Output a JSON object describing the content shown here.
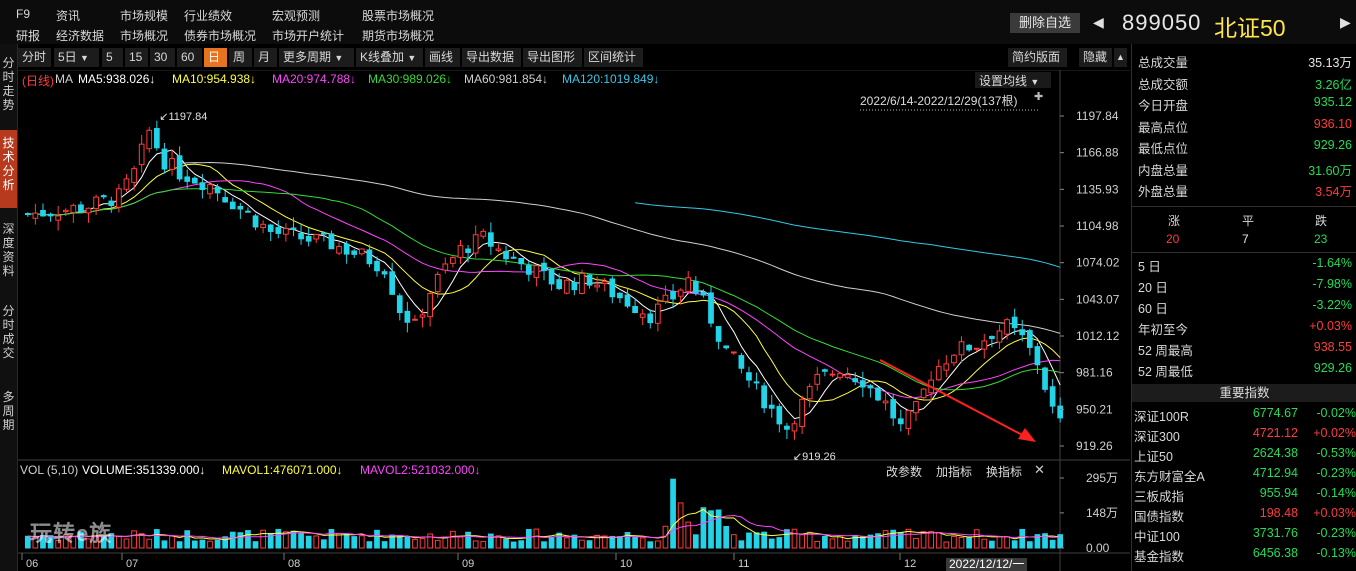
{
  "menu": {
    "row1": [
      "F9",
      "资讯",
      "市场规模",
      "行业绩效",
      "宏观预测",
      "股票市场概况"
    ],
    "row2": [
      "研报",
      "经济数据",
      "市场概况",
      "债券市场概况",
      "市场开户统计",
      "期货市场概况"
    ]
  },
  "header": {
    "remove_watch": "删除自选",
    "code": "899050",
    "name": "北证50"
  },
  "side_tabs": [
    "分\n时\n走\n势",
    "技\n术\n分\n析",
    "深\n度\n资\n料",
    "分\n时\n成\n交",
    "多\n周\n期"
  ],
  "toolbar": {
    "items": [
      "分时",
      "5日",
      "5",
      "15",
      "30",
      "60",
      "日",
      "周",
      "月",
      "更多周期",
      "K线叠加",
      "画线",
      "导出数据",
      "导出图形",
      "区间统计"
    ],
    "active": "日",
    "right": [
      "简约版面",
      "隐藏"
    ]
  },
  "ma_legend": {
    "period_tag": "(日线)",
    "ma": "MA",
    "items": [
      {
        "text": "MA5:938.026↓",
        "color": "#ffffff"
      },
      {
        "text": "MA10:954.938↓",
        "color": "#ffff3c"
      },
      {
        "text": "MA20:974.788↓",
        "color": "#ff44ff"
      },
      {
        "text": "MA30:989.026↓",
        "color": "#33dd33"
      },
      {
        "text": "MA60:981.854↓",
        "color": "#cfcfcf"
      },
      {
        "text": "MA120:1019.849↓",
        "color": "#33c8e8"
      }
    ],
    "settings": "设置均线",
    "range": "2022/6/14-2022/12/29(137根)"
  },
  "price_axis": [
    "1197.84",
    "1166.88",
    "1135.93",
    "1104.98",
    "1074.02",
    "1043.07",
    "1012.12",
    "981.16",
    "950.21",
    "919.26"
  ],
  "annotations": {
    "high": "1197.84",
    "low": "919.26"
  },
  "volume": {
    "legend_name": "VOL (5,10)",
    "volume": "VOLUME:351339.000↓",
    "mavol1": "MAVOL1:476071.000↓",
    "mavol2": "MAVOL2:521032.000↓",
    "buttons": [
      "改参数",
      "加指标",
      "换指标"
    ],
    "axis": [
      "295万",
      "148万",
      "0.00"
    ]
  },
  "x_axis": [
    "06",
    "07",
    "08",
    "09",
    "10",
    "11",
    "12"
  ],
  "cursor_date": "2022/12/12/一",
  "watermark": "玩转e族",
  "quote": [
    {
      "k": "总成交量",
      "v": "35.13万",
      "c": "white"
    },
    {
      "k": "总成交额",
      "v": "3.26亿",
      "c": "green"
    },
    {
      "k": "今日开盘",
      "v": "935.12",
      "c": "green"
    },
    {
      "k": "最高点位",
      "v": "936.10",
      "c": "red"
    },
    {
      "k": "最低点位",
      "v": "929.26",
      "c": "green"
    },
    {
      "k": "内盘总量",
      "v": "31.60万",
      "c": "green"
    },
    {
      "k": "外盘总量",
      "v": "3.54万",
      "c": "red"
    }
  ],
  "breadth": {
    "labels": [
      "涨",
      "平",
      "跌"
    ],
    "values": [
      "20",
      "7",
      "23"
    ]
  },
  "periods": [
    {
      "k": "5 日",
      "v": "-1.64%",
      "c": "green"
    },
    {
      "k": "20 日",
      "v": "-7.98%",
      "c": "green"
    },
    {
      "k": "60 日",
      "v": "-3.22%",
      "c": "green"
    },
    {
      "k": "年初至今",
      "v": "+0.03%",
      "c": "red"
    },
    {
      "k": "52 周最高",
      "v": "938.55",
      "c": "red"
    },
    {
      "k": "52 周最低",
      "v": "929.26",
      "c": "green"
    }
  ],
  "indices_title": "重要指数",
  "indices": [
    {
      "n": "深证100R",
      "p": "6774.67",
      "c": "-0.02%",
      "col": "green"
    },
    {
      "n": "深证300",
      "p": "4721.12",
      "c": "+0.02%",
      "col": "red"
    },
    {
      "n": "上证50",
      "p": "2624.38",
      "c": "-0.53%",
      "col": "green"
    },
    {
      "n": "东方财富全A",
      "p": "4712.94",
      "c": "-0.23%",
      "col": "green"
    },
    {
      "n": "三板成指",
      "p": "955.94",
      "c": "-0.14%",
      "col": "green"
    },
    {
      "n": "国债指数",
      "p": "198.48",
      "c": "+0.03%",
      "col": "red"
    },
    {
      "n": "中证100",
      "p": "3731.76",
      "c": "-0.23%",
      "col": "green"
    },
    {
      "n": "基金指数",
      "p": "6456.38",
      "c": "-0.13%",
      "col": "green"
    }
  ],
  "colors": {
    "up": "#ff3b3b",
    "down": "#22dd55",
    "candle_down": "#23d3e8",
    "accent": "#e8731e"
  }
}
